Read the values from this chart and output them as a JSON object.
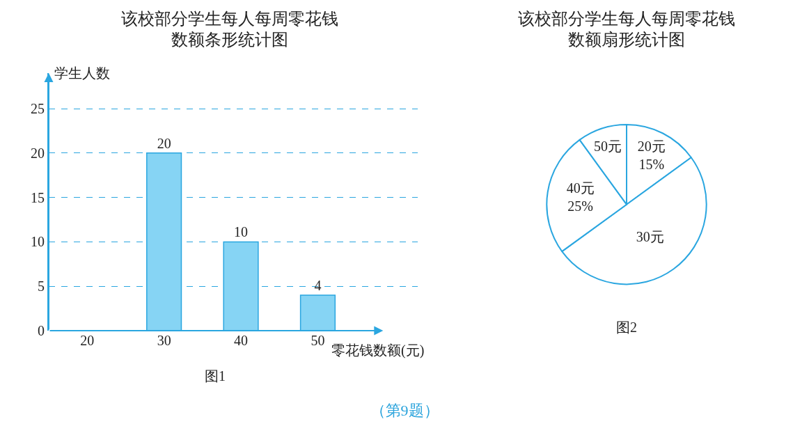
{
  "chart_data": [
    {
      "type": "bar",
      "title": "该校部分学生每人每周零花钱数额条形统计图",
      "xlabel": "零花钱数额(元)",
      "ylabel": "学生人数",
      "categories": [
        "20",
        "30",
        "40",
        "50"
      ],
      "values": [
        null,
        20,
        10,
        4
      ],
      "color": "#86d4f4",
      "ylim": [
        0,
        29
      ],
      "yticks": [
        0,
        5,
        10,
        15,
        20,
        25
      ],
      "grid": "y",
      "data_labels": true,
      "legend": false,
      "annotations": [
        "图1",
        "（第9题）"
      ]
    },
    {
      "type": "pie",
      "title": "该校部分学生每人每周零花钱数额扇形统计图",
      "categories": [
        "20元",
        "30元",
        "40元",
        "50元"
      ],
      "values": [
        15,
        50,
        25,
        10
      ],
      "colors": [
        "#ffffff",
        "#ffffff",
        "#ffffff",
        "#ffffff"
      ],
      "value_labels": [
        "15%",
        null,
        "25%",
        null
      ],
      "legend": false,
      "annotations": [
        "图2"
      ]
    }
  ]
}
